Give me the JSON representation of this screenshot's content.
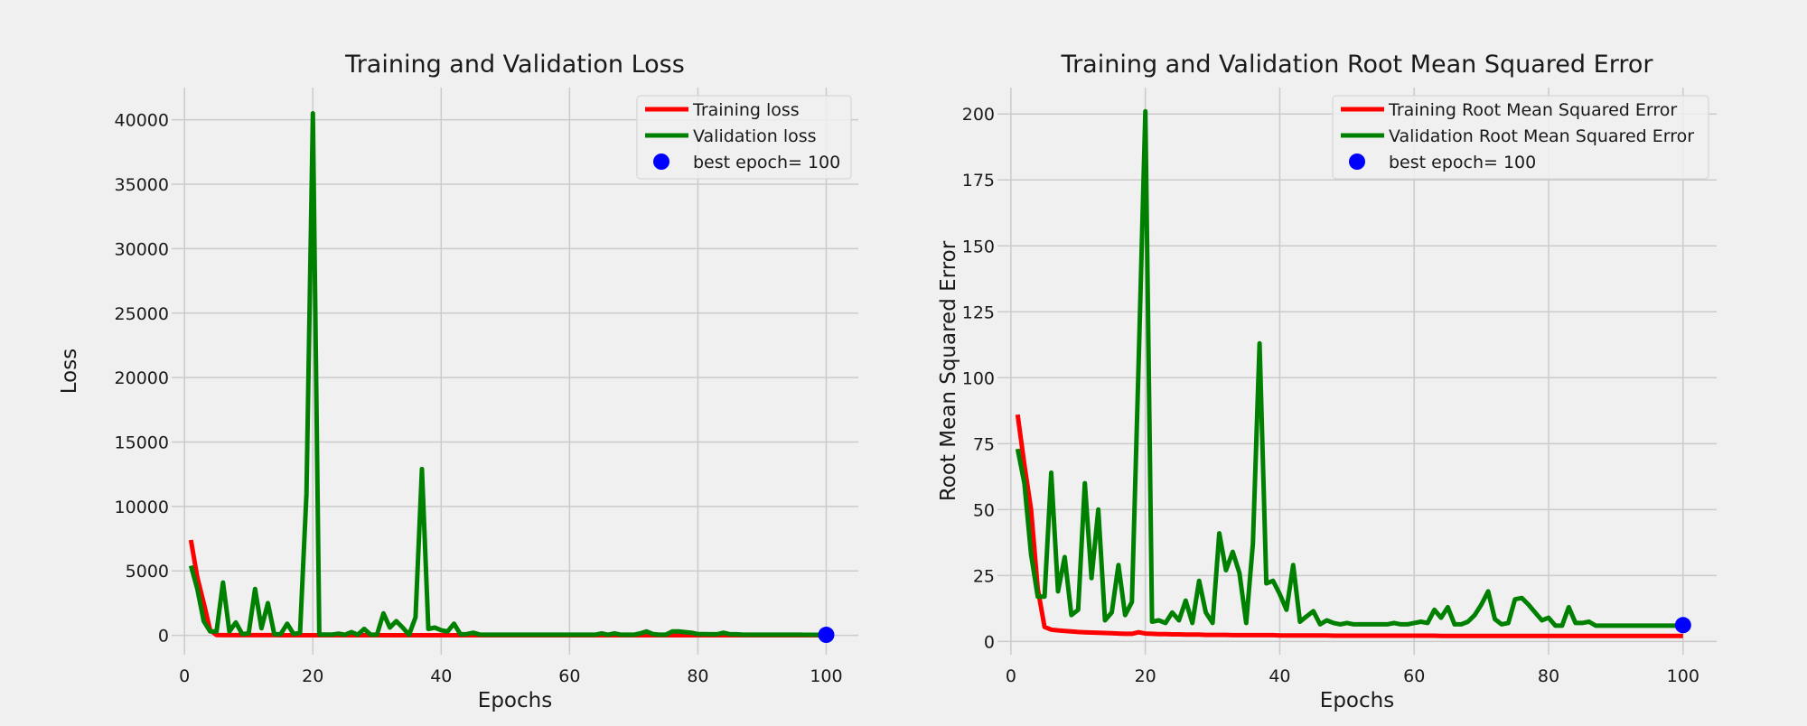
{
  "chart_data": [
    {
      "type": "line",
      "title": "Training and Validation Loss",
      "xlabel": "Epochs",
      "ylabel": "Loss",
      "xlim": [
        -2,
        105
      ],
      "ylim": [
        -1500,
        42500
      ],
      "xticks": [
        0,
        20,
        40,
        60,
        80,
        100
      ],
      "yticks": [
        0,
        5000,
        10000,
        15000,
        20000,
        25000,
        30000,
        35000,
        40000
      ],
      "grid": true,
      "legend_position": "top-right",
      "series": [
        {
          "name": "Training loss",
          "color": "#ff0000",
          "x": [
            1,
            2,
            3,
            4,
            5,
            6,
            7,
            8,
            9,
            10,
            11,
            12,
            13,
            14,
            15,
            16,
            17,
            18,
            19,
            20,
            21,
            22,
            23,
            24,
            25,
            26,
            27,
            28,
            29,
            30,
            31,
            32,
            33,
            34,
            35,
            36,
            37,
            38,
            39,
            40,
            41,
            42,
            43,
            44,
            45,
            46,
            47,
            48,
            49,
            50,
            51,
            52,
            53,
            54,
            55,
            56,
            57,
            58,
            59,
            60,
            61,
            62,
            63,
            64,
            65,
            66,
            67,
            68,
            69,
            70,
            71,
            72,
            73,
            74,
            75,
            76,
            77,
            78,
            79,
            80,
            81,
            82,
            83,
            84,
            85,
            86,
            87,
            88,
            89,
            90,
            91,
            92,
            93,
            94,
            95,
            96,
            97,
            98,
            99,
            100
          ],
          "y": [
            7400,
            4500,
            2500,
            400,
            20,
            15,
            14,
            13,
            13,
            12,
            12,
            11,
            10,
            10,
            9,
            9,
            9,
            9,
            9,
            9,
            8,
            8,
            8,
            8,
            7,
            7,
            7,
            7,
            7,
            7,
            6,
            6,
            6,
            6,
            6,
            6,
            6,
            6,
            6,
            6,
            5,
            5,
            5,
            5,
            5,
            5,
            5,
            5,
            5,
            5,
            5,
            5,
            5,
            5,
            5,
            5,
            5,
            5,
            5,
            5,
            5,
            5,
            5,
            5,
            5,
            5,
            5,
            5,
            5,
            5,
            5,
            5,
            5,
            5,
            5,
            5,
            5,
            5,
            5,
            5,
            5,
            5,
            5,
            5,
            5,
            5,
            5,
            5,
            5,
            5,
            5,
            5,
            5,
            5,
            5,
            5,
            5,
            5,
            5,
            5
          ]
        },
        {
          "name": "Validation loss",
          "color": "#008000",
          "x": [
            1,
            2,
            3,
            4,
            5,
            6,
            7,
            8,
            9,
            10,
            11,
            12,
            13,
            14,
            15,
            16,
            17,
            18,
            19,
            20,
            21,
            22,
            23,
            24,
            25,
            26,
            27,
            28,
            29,
            30,
            31,
            32,
            33,
            34,
            35,
            36,
            37,
            38,
            39,
            40,
            41,
            42,
            43,
            44,
            45,
            46,
            47,
            48,
            49,
            50,
            51,
            52,
            53,
            54,
            55,
            56,
            57,
            58,
            59,
            60,
            61,
            62,
            63,
            64,
            65,
            66,
            67,
            68,
            69,
            70,
            71,
            72,
            73,
            74,
            75,
            76,
            77,
            78,
            79,
            80,
            81,
            82,
            83,
            84,
            85,
            86,
            87,
            88,
            89,
            90,
            91,
            92,
            93,
            94,
            95,
            96,
            97,
            98,
            99,
            100
          ],
          "y": [
            5400,
            3600,
            1100,
            300,
            300,
            4100,
            300,
            1000,
            100,
            150,
            3600,
            550,
            2500,
            80,
            100,
            900,
            100,
            200,
            11000,
            40500,
            60,
            60,
            60,
            130,
            40,
            250,
            50,
            500,
            50,
            60,
            1700,
            600,
            1100,
            600,
            50,
            1400,
            12900,
            500,
            600,
            400,
            300,
            900,
            80,
            100,
            200,
            60,
            50,
            50,
            50,
            50,
            50,
            50,
            50,
            50,
            50,
            50,
            50,
            50,
            50,
            50,
            50,
            50,
            50,
            50,
            150,
            50,
            150,
            50,
            50,
            50,
            150,
            300,
            100,
            50,
            50,
            300,
            300,
            250,
            200,
            100,
            100,
            80,
            80,
            200,
            80,
            80,
            50,
            50,
            50,
            50,
            50,
            50,
            50,
            50,
            50,
            50,
            40,
            40,
            40,
            40
          ]
        }
      ],
      "best_point": {
        "label": "best epoch= 100",
        "x": 100,
        "y": 40,
        "color": "#0000ff"
      }
    },
    {
      "type": "line",
      "title": "Training and Validation Root Mean Squared Error",
      "xlabel": "Epochs",
      "ylabel": "Root Mean Squared Error",
      "xlim": [
        -2,
        105
      ],
      "ylim": [
        -5,
        210
      ],
      "xticks": [
        0,
        20,
        40,
        60,
        80,
        100
      ],
      "yticks": [
        0,
        25,
        50,
        75,
        100,
        125,
        150,
        175,
        200
      ],
      "grid": true,
      "legend_position": "top-right",
      "series": [
        {
          "name": "Training Root Mean Squared Error",
          "color": "#ff0000",
          "x": [
            1,
            2,
            3,
            4,
            5,
            6,
            7,
            8,
            9,
            10,
            11,
            12,
            13,
            14,
            15,
            16,
            17,
            18,
            19,
            20,
            21,
            22,
            23,
            24,
            25,
            26,
            27,
            28,
            29,
            30,
            31,
            32,
            33,
            34,
            35,
            36,
            37,
            38,
            39,
            40,
            41,
            42,
            43,
            44,
            45,
            46,
            47,
            48,
            49,
            50,
            51,
            52,
            53,
            54,
            55,
            56,
            57,
            58,
            59,
            60,
            61,
            62,
            63,
            64,
            65,
            66,
            67,
            68,
            69,
            70,
            71,
            72,
            73,
            74,
            75,
            76,
            77,
            78,
            79,
            80,
            81,
            82,
            83,
            84,
            85,
            86,
            87,
            88,
            89,
            90,
            91,
            92,
            93,
            94,
            95,
            96,
            97,
            98,
            99,
            100
          ],
          "y": [
            86,
            67,
            50,
            20,
            5.5,
            4.5,
            4.2,
            4,
            3.8,
            3.6,
            3.5,
            3.4,
            3.3,
            3.2,
            3.1,
            3,
            2.9,
            2.9,
            3.5,
            3,
            2.9,
            2.8,
            2.8,
            2.7,
            2.7,
            2.6,
            2.6,
            2.6,
            2.5,
            2.5,
            2.5,
            2.5,
            2.4,
            2.4,
            2.4,
            2.4,
            2.4,
            2.4,
            2.4,
            2.3,
            2.3,
            2.3,
            2.3,
            2.3,
            2.3,
            2.3,
            2.3,
            2.2,
            2.2,
            2.2,
            2.2,
            2.2,
            2.2,
            2.2,
            2.2,
            2.2,
            2.2,
            2.2,
            2.2,
            2.2,
            2.2,
            2.2,
            2.2,
            2.1,
            2.1,
            2.1,
            2.1,
            2.1,
            2.1,
            2.1,
            2.1,
            2.1,
            2.1,
            2.1,
            2.1,
            2.1,
            2.1,
            2.1,
            2.1,
            2.1,
            2.1,
            2.1,
            2.1,
            2.1,
            2.1,
            2.1,
            2.1,
            2.1,
            2.1,
            2.1,
            2.1,
            2.1,
            2.1,
            2.1,
            2.1,
            2.1,
            2.1,
            2.1,
            2.1,
            2.1
          ]
        },
        {
          "name": "Validation Root Mean Squared Error",
          "color": "#008000",
          "x": [
            1,
            2,
            3,
            4,
            5,
            6,
            7,
            8,
            9,
            10,
            11,
            12,
            13,
            14,
            15,
            16,
            17,
            18,
            19,
            20,
            21,
            22,
            23,
            24,
            25,
            26,
            27,
            28,
            29,
            30,
            31,
            32,
            33,
            34,
            35,
            36,
            37,
            38,
            39,
            40,
            41,
            42,
            43,
            44,
            45,
            46,
            47,
            48,
            49,
            50,
            51,
            52,
            53,
            54,
            55,
            56,
            57,
            58,
            59,
            60,
            61,
            62,
            63,
            64,
            65,
            66,
            67,
            68,
            69,
            70,
            71,
            72,
            73,
            74,
            75,
            76,
            77,
            78,
            79,
            80,
            81,
            82,
            83,
            84,
            85,
            86,
            87,
            88,
            89,
            90,
            91,
            92,
            93,
            94,
            95,
            96,
            97,
            98,
            99,
            100
          ],
          "y": [
            73,
            60,
            33,
            17,
            17,
            64,
            19,
            32,
            10,
            12,
            60,
            24,
            50,
            8,
            11,
            29,
            10,
            15,
            105,
            201,
            7.5,
            8,
            7,
            11,
            8,
            15.5,
            7,
            23,
            11,
            7,
            41,
            27,
            34,
            26,
            7,
            37,
            113,
            22,
            23,
            18,
            12,
            29,
            7.5,
            9.5,
            11.5,
            6.5,
            8,
            7,
            6.5,
            7,
            6.5,
            6.5,
            6.5,
            6.5,
            6.5,
            6.5,
            7,
            6.5,
            6.5,
            7,
            7.5,
            7,
            12,
            9,
            13,
            6.5,
            6.5,
            7.5,
            10,
            14,
            19,
            8.5,
            6.5,
            7,
            16,
            16.5,
            14,
            11,
            8,
            9,
            6,
            6,
            13,
            7,
            7,
            7.5,
            6,
            6,
            6,
            6,
            6,
            6,
            6,
            6,
            6,
            6,
            6,
            6,
            6,
            6
          ]
        }
      ],
      "best_point": {
        "label": "best epoch= 100",
        "x": 100,
        "y": 6.2,
        "color": "#0000ff"
      }
    }
  ]
}
